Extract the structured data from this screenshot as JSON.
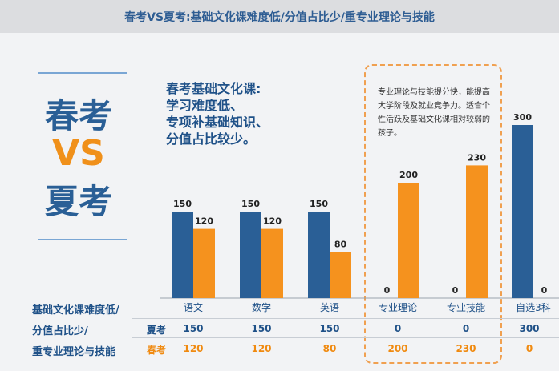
{
  "header": {
    "title": "春考VS夏考:基础文化课难度低/分值占比少/重专业理论与技能"
  },
  "left": {
    "line1": "春考",
    "line2": "VS",
    "line3": "夏考"
  },
  "note_left": [
    "春考基础文化课:",
    "学习难度低、",
    "专项补基础知识、",
    "分值占比较少。"
  ],
  "note_right": "专业理论与技能提分快，能提高大学阶段及就业竞争力。适合个性活跃及基础文化课相对较弱的孩子。",
  "side_label": [
    "基础文化课难度低/",
    "分值占比少/",
    "重专业理论与技能"
  ],
  "colors": {
    "summer": "#2a5f96",
    "spring": "#f5921e",
    "accent_text": "#1f5188"
  },
  "chart_data": {
    "type": "bar",
    "categories": [
      "语文",
      "数学",
      "英语",
      "专业理论",
      "专业技能",
      "自选3科"
    ],
    "series": [
      {
        "name": "夏考",
        "values": [
          150,
          150,
          150,
          0,
          0,
          300
        ]
      },
      {
        "name": "春考",
        "values": [
          120,
          120,
          80,
          200,
          230,
          0
        ]
      }
    ],
    "ylim": [
      0,
      300
    ]
  },
  "table": {
    "rows": [
      {
        "label": "夏考",
        "values": [
          "150",
          "150",
          "150",
          "0",
          "0",
          "300"
        ]
      },
      {
        "label": "春考",
        "values": [
          "120",
          "120",
          "80",
          "200",
          "230",
          "0"
        ]
      }
    ]
  }
}
